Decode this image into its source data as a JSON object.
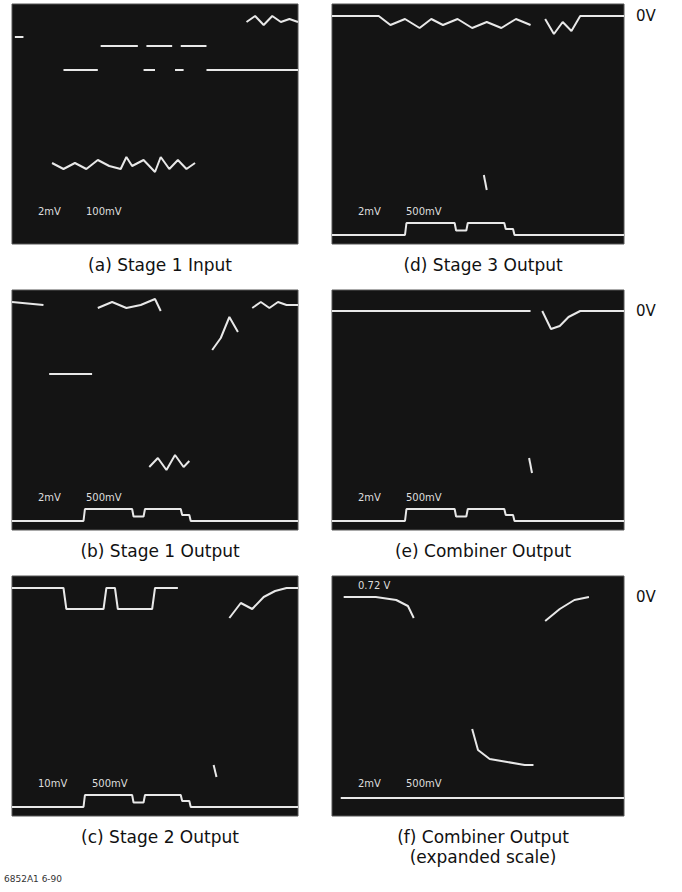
{
  "chart_data": [
    {
      "type": "line",
      "title": "(a) Stage 1 Input",
      "color": "#e8e8e8",
      "xlim": [
        0,
        10
      ],
      "ylim": [
        0,
        8
      ],
      "tick_labels": false,
      "grid": false,
      "readouts": [
        "2mV",
        "100mV"
      ],
      "series": [
        {
          "x": [
            0.1,
            0.4,
            0.5,
            8.2,
            8.5,
            8.8,
            9.1,
            9.4,
            9.7,
            10
          ],
          "values": [
            6.9,
            6.9,
            null,
            7.4,
            7.6,
            7.3,
            7.6,
            7.4,
            7.5,
            7.4
          ]
        },
        {
          "x": [
            3.1,
            4.4,
            4.5,
            4.7,
            5.6,
            5.7,
            5.9,
            6.8
          ],
          "values": [
            6.6,
            6.6,
            null,
            6.6,
            6.6,
            null,
            6.6,
            6.6
          ]
        },
        {
          "x": [
            1.8,
            3.0,
            3.1,
            4.6,
            5.0,
            5.1,
            5.7,
            6.0,
            6.1,
            6.8,
            10
          ],
          "values": [
            5.8,
            5.8,
            null,
            5.8,
            5.8,
            null,
            5.8,
            5.8,
            null,
            5.8,
            5.8
          ]
        },
        {
          "x": [
            1.4,
            1.8,
            2.2,
            2.6,
            3.0,
            3.4,
            3.8,
            4.0,
            4.2,
            4.6,
            5.0,
            5.2,
            5.5,
            5.8,
            6.1,
            6.4
          ],
          "values": [
            2.7,
            2.5,
            2.7,
            2.5,
            2.8,
            2.6,
            2.5,
            2.9,
            2.6,
            2.8,
            2.4,
            2.9,
            2.5,
            2.8,
            2.5,
            2.7
          ]
        }
      ]
    },
    {
      "type": "line",
      "title": "(b) Stage 1 Output",
      "color": "#e8e8e8",
      "xlim": [
        0,
        10
      ],
      "ylim": [
        0,
        8
      ],
      "tick_labels": false,
      "grid": false,
      "readouts": [
        "2mV",
        "500mV"
      ],
      "series": [
        {
          "x": [
            0,
            1.1,
            1.2,
            1.3,
            2.8,
            2.9,
            3.0,
            3.5,
            4.0,
            4.5,
            5.0,
            5.2,
            5.3,
            7.0,
            7.3,
            7.6,
            7.9,
            8.1,
            8.4,
            8.7,
            9.0,
            9.3,
            9.6,
            10
          ],
          "values": [
            7.6,
            7.5,
            null,
            5.2,
            5.2,
            null,
            7.4,
            7.6,
            7.4,
            7.5,
            7.7,
            7.3,
            null,
            6.0,
            6.4,
            7.1,
            6.6,
            null,
            7.4,
            7.6,
            7.4,
            7.6,
            7.5,
            7.5
          ]
        },
        {
          "x": [
            4.8,
            5.1,
            5.4,
            5.7,
            6.0,
            6.2
          ],
          "values": [
            2.1,
            2.4,
            2.0,
            2.5,
            2.1,
            2.3
          ]
        },
        {
          "x": [
            0,
            2.5,
            2.55,
            4.2,
            4.25,
            4.6,
            4.65,
            5.9,
            5.95,
            6.2,
            6.25,
            10
          ],
          "values": [
            0.3,
            0.3,
            0.7,
            0.7,
            0.45,
            0.45,
            0.7,
            0.7,
            0.5,
            0.5,
            0.3,
            0.3
          ]
        }
      ]
    },
    {
      "type": "line",
      "title": "(c) Stage 2 Output",
      "color": "#e8e8e8",
      "xlim": [
        0,
        10
      ],
      "ylim": [
        0,
        8
      ],
      "tick_labels": false,
      "grid": false,
      "readouts": [
        "10mV",
        "500mV"
      ],
      "series": [
        {
          "x": [
            0,
            1.8,
            1.9,
            3.2,
            3.3,
            3.6,
            3.7,
            4.9,
            5.0,
            5.8,
            5.9,
            7.6,
            8.0,
            8.4,
            8.8,
            9.2,
            9.6,
            10
          ],
          "values": [
            7.6,
            7.6,
            6.9,
            6.9,
            7.6,
            7.6,
            6.9,
            6.9,
            7.6,
            7.6,
            null,
            6.6,
            7.1,
            6.9,
            7.3,
            7.5,
            7.6,
            7.6
          ]
        },
        {
          "x": [
            7.05,
            7.15
          ],
          "values": [
            1.7,
            1.3
          ]
        },
        {
          "x": [
            0,
            2.5,
            2.55,
            4.2,
            4.25,
            4.6,
            4.65,
            5.9,
            5.95,
            6.2,
            6.25,
            10
          ],
          "values": [
            0.3,
            0.3,
            0.7,
            0.7,
            0.45,
            0.45,
            0.7,
            0.7,
            0.5,
            0.5,
            0.3,
            0.3
          ]
        }
      ]
    },
    {
      "type": "line",
      "title": "(d) Stage 3 Output",
      "color": "#e8e8e8",
      "xlim": [
        0,
        10
      ],
      "ylim": [
        0,
        8
      ],
      "tick_labels": false,
      "grid": false,
      "readouts": [
        "2mV",
        "500mV"
      ],
      "level_label": {
        "text": "0V",
        "y": 7.6
      },
      "series": [
        {
          "x": [
            0,
            1.6,
            2.0,
            2.5,
            3.0,
            3.4,
            3.8,
            4.3,
            4.8,
            5.3,
            5.8,
            6.3,
            6.8,
            6.9,
            7.3,
            7.6,
            7.9,
            8.2,
            8.5,
            9.0,
            10
          ],
          "values": [
            7.6,
            7.6,
            7.3,
            7.5,
            7.2,
            7.5,
            7.3,
            7.5,
            7.2,
            7.4,
            7.2,
            7.5,
            7.3,
            null,
            7.5,
            7.0,
            7.4,
            7.1,
            7.6,
            7.6,
            7.6
          ]
        },
        {
          "x": [
            5.2,
            5.3
          ],
          "values": [
            2.3,
            1.8
          ]
        },
        {
          "x": [
            0,
            2.5,
            2.55,
            4.2,
            4.25,
            4.6,
            4.65,
            5.9,
            5.95,
            6.2,
            6.25,
            10
          ],
          "values": [
            0.3,
            0.3,
            0.7,
            0.7,
            0.45,
            0.45,
            0.7,
            0.7,
            0.5,
            0.5,
            0.3,
            0.3
          ]
        }
      ]
    },
    {
      "type": "line",
      "title": "(e) Combiner Output",
      "color": "#e8e8e8",
      "xlim": [
        0,
        10
      ],
      "ylim": [
        0,
        8
      ],
      "tick_labels": false,
      "grid": false,
      "readouts": [
        "2mV",
        "500mV"
      ],
      "level_label": {
        "text": "0V",
        "y": 7.3
      },
      "series": [
        {
          "x": [
            0,
            6.8,
            6.9,
            7.2,
            7.5,
            7.8,
            8.1,
            8.5,
            10
          ],
          "values": [
            7.3,
            7.3,
            null,
            7.3,
            6.7,
            6.8,
            7.1,
            7.3,
            7.3
          ]
        },
        {
          "x": [
            6.75,
            6.85
          ],
          "values": [
            2.4,
            1.9
          ]
        },
        {
          "x": [
            0,
            2.5,
            2.55,
            4.2,
            4.25,
            4.6,
            4.65,
            5.9,
            5.95,
            6.2,
            6.25,
            10
          ],
          "values": [
            0.3,
            0.3,
            0.7,
            0.7,
            0.45,
            0.45,
            0.7,
            0.7,
            0.5,
            0.5,
            0.3,
            0.3
          ]
        }
      ]
    },
    {
      "type": "line",
      "title": "(f) Combiner Output (expanded scale)",
      "color": "#e8e8e8",
      "xlim": [
        0,
        10
      ],
      "ylim": [
        0,
        8
      ],
      "tick_labels": false,
      "grid": false,
      "readouts": [
        "2mV",
        "500mV"
      ],
      "top_readouts": [
        "0.72 V"
      ],
      "level_label": {
        "text": "0V",
        "y": 7.3
      },
      "series": [
        {
          "x": [
            0.4,
            1.5,
            2.2,
            2.6,
            2.8
          ],
          "values": [
            7.3,
            7.3,
            7.2,
            7.0,
            6.6
          ]
        },
        {
          "x": [
            4.8,
            5.0,
            5.4,
            6.0,
            6.6,
            6.9
          ],
          "values": [
            2.9,
            2.2,
            1.9,
            1.8,
            1.7,
            1.7
          ]
        },
        {
          "x": [
            7.3,
            7.8,
            8.3,
            8.8
          ],
          "values": [
            6.5,
            6.9,
            7.2,
            7.3
          ]
        },
        {
          "x": [
            0.3,
            10
          ],
          "values": [
            0.6,
            0.6
          ]
        }
      ]
    }
  ],
  "footer": "6852A1 6-90"
}
